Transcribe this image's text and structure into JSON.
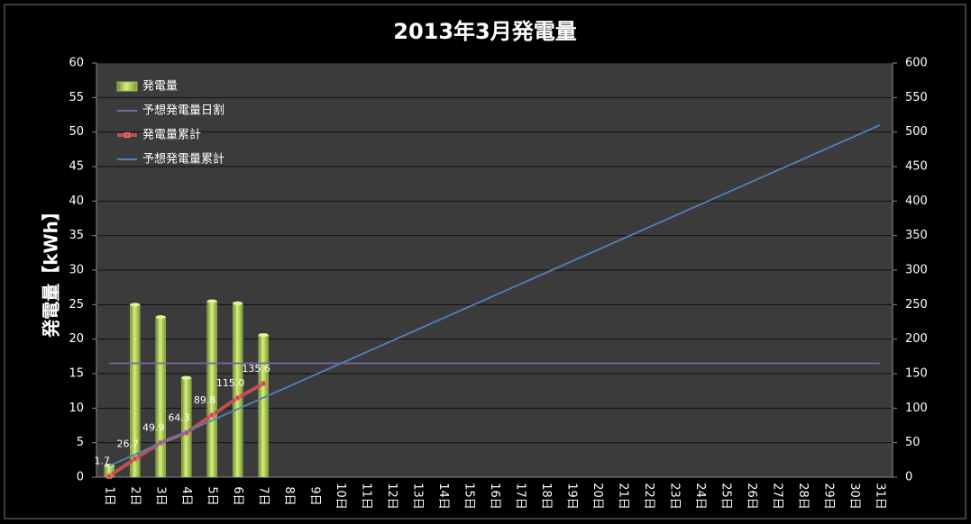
{
  "chart_data": {
    "type": "bar",
    "title": "2013年3月発電量",
    "y_label": "発電量【kWh】",
    "categories": [
      "1日",
      "2日",
      "3日",
      "4日",
      "5日",
      "6日",
      "7日",
      "8日",
      "9日",
      "10日",
      "11日",
      "12日",
      "13日",
      "14日",
      "15日",
      "16日",
      "17日",
      "18日",
      "19日",
      "20日",
      "21日",
      "22日",
      "23日",
      "24日",
      "25日",
      "26日",
      "27日",
      "28日",
      "29日",
      "30日",
      "31日"
    ],
    "series": [
      {
        "name": "発電量",
        "type": "bar",
        "color": "#9bbb59",
        "axis": "y",
        "values": [
          1.7,
          25.0,
          23.2,
          14.4,
          25.5,
          25.2,
          20.6,
          null,
          null,
          null,
          null,
          null,
          null,
          null,
          null,
          null,
          null,
          null,
          null,
          null,
          null,
          null,
          null,
          null,
          null,
          null,
          null,
          null,
          null,
          null,
          null
        ]
      },
      {
        "name": "予想発電量日割",
        "type": "line",
        "color": "#8064a2",
        "axis": "y",
        "values": [
          16.5,
          16.5,
          16.5,
          16.5,
          16.5,
          16.5,
          16.5,
          16.5,
          16.5,
          16.5,
          16.5,
          16.5,
          16.5,
          16.5,
          16.5,
          16.5,
          16.5,
          16.5,
          16.5,
          16.5,
          16.5,
          16.5,
          16.5,
          16.5,
          16.5,
          16.5,
          16.5,
          16.5,
          16.5,
          16.5,
          16.5
        ]
      },
      {
        "name": "発電量累計",
        "type": "line",
        "color": "#c0504d",
        "axis": "y2",
        "markers": true,
        "values": [
          1.7,
          26.7,
          49.9,
          64.3,
          89.8,
          115.0,
          135.6,
          null,
          null,
          null,
          null,
          null,
          null,
          null,
          null,
          null,
          null,
          null,
          null,
          null,
          null,
          null,
          null,
          null,
          null,
          null,
          null,
          null,
          null,
          null,
          null
        ],
        "value_labels": [
          "1.7",
          "26.7",
          "49.9",
          "64.3",
          "89.8",
          "115.0",
          "135.6",
          null,
          null,
          null,
          null,
          null,
          null,
          null,
          null,
          null,
          null,
          null,
          null,
          null,
          null,
          null,
          null,
          null,
          null,
          null,
          null,
          null,
          null,
          null,
          null
        ]
      },
      {
        "name": "予想発電量累計",
        "type": "line",
        "color": "#4f81bd",
        "axis": "y2",
        "values": [
          16.5,
          32.9,
          49.4,
          65.8,
          82.3,
          98.7,
          115.2,
          131.6,
          148.1,
          164.5,
          181.0,
          197.4,
          213.9,
          230.3,
          246.8,
          263.2,
          279.7,
          296.1,
          312.6,
          329.0,
          345.5,
          361.9,
          378.4,
          394.8,
          411.3,
          427.7,
          444.2,
          460.6,
          477.1,
          493.5,
          510.0
        ]
      }
    ],
    "ylim": [
      0,
      60
    ],
    "yticks": [
      0,
      5,
      10,
      15,
      20,
      25,
      30,
      35,
      40,
      45,
      50,
      55,
      60
    ],
    "y2lim": [
      0,
      600
    ],
    "y2ticks": [
      0,
      50,
      100,
      150,
      200,
      250,
      300,
      350,
      400,
      450,
      500,
      550,
      600
    ],
    "grid": true,
    "legend": "top-left"
  }
}
